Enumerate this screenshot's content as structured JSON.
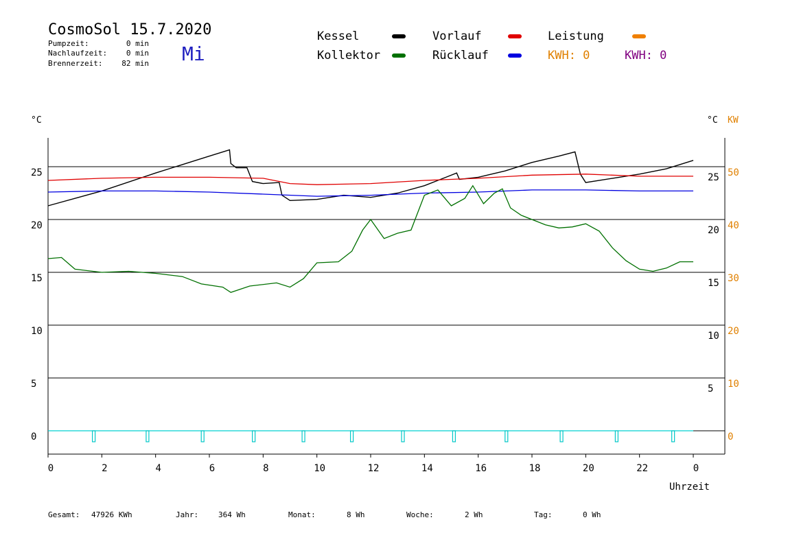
{
  "header": {
    "title": "CosmoSol 15.7.2020",
    "weekday": "Mi",
    "stats": [
      {
        "label": "Pumpzeit:",
        "value": "0 min"
      },
      {
        "label": "Nachlaufzeit:",
        "value": "0 min"
      },
      {
        "label": "Brennerzeit:",
        "value": "82 min"
      }
    ]
  },
  "legend": {
    "items": [
      {
        "label": "Kessel",
        "color": "#000000"
      },
      {
        "label": "Vorlauf",
        "color": "#e00000"
      },
      {
        "label": "Leistung",
        "color": "#f08000"
      },
      {
        "label": "Kollektor",
        "color": "#007000"
      },
      {
        "label": "Rücklauf",
        "color": "#0000e0"
      }
    ],
    "kwh_orange": {
      "text": "KWH: 0",
      "color": "#e08000"
    },
    "kwh_purple": {
      "text": "KWH: 0",
      "color": "#800080"
    }
  },
  "footer": [
    {
      "label": "Gesamt:",
      "value": "47926 KWh"
    },
    {
      "label": "Jahr:",
      "value": "364 Wh"
    },
    {
      "label": "Monat:",
      "value": "8 Wh"
    },
    {
      "label": "Woche:",
      "value": "2 Wh"
    },
    {
      "label": "Tag:",
      "value": "0 Wh"
    }
  ],
  "chart_data": {
    "type": "line",
    "xlabel": "Uhrzeit",
    "ylabel_left": "°C",
    "ylabel_right": "°C",
    "ylabel_power": "KW",
    "xlim": [
      0,
      24
    ],
    "ylim": [
      -2,
      27.5
    ],
    "x_ticks": [
      "0",
      "2",
      "4",
      "6",
      "8",
      "10",
      "12",
      "14",
      "16",
      "18",
      "20",
      "22",
      "0"
    ],
    "y_ticks_left": [
      0,
      5,
      10,
      15,
      20,
      25
    ],
    "y_ticks_right": [
      5,
      10,
      15,
      20,
      25
    ],
    "y_ticks_power": [
      0,
      10,
      20,
      30,
      40,
      50
    ],
    "grid": true,
    "series": [
      {
        "name": "Kessel",
        "color": "#000000",
        "points": [
          [
            0,
            21.3
          ],
          [
            2,
            22.7
          ],
          [
            4,
            24.4
          ],
          [
            6,
            26.0
          ],
          [
            6.75,
            26.6
          ],
          [
            6.8,
            25.3
          ],
          [
            7.0,
            24.9
          ],
          [
            7.4,
            24.9
          ],
          [
            7.6,
            23.6
          ],
          [
            8.0,
            23.4
          ],
          [
            8.6,
            23.5
          ],
          [
            8.7,
            22.3
          ],
          [
            9.0,
            21.8
          ],
          [
            10,
            21.9
          ],
          [
            11,
            22.3
          ],
          [
            12,
            22.1
          ],
          [
            13,
            22.5
          ],
          [
            14,
            23.2
          ],
          [
            14.8,
            24.0
          ],
          [
            15.2,
            24.4
          ],
          [
            15.3,
            23.8
          ],
          [
            16,
            24.0
          ],
          [
            17,
            24.6
          ],
          [
            18,
            25.4
          ],
          [
            19,
            26.0
          ],
          [
            19.6,
            26.4
          ],
          [
            19.8,
            24.3
          ],
          [
            20.0,
            23.5
          ],
          [
            21,
            23.9
          ],
          [
            22,
            24.3
          ],
          [
            23,
            24.8
          ],
          [
            24,
            25.6
          ]
        ]
      },
      {
        "name": "Vorlauf",
        "color": "#e00000",
        "points": [
          [
            0,
            23.7
          ],
          [
            2,
            23.9
          ],
          [
            4,
            24.0
          ],
          [
            6,
            24.0
          ],
          [
            8,
            23.9
          ],
          [
            9,
            23.4
          ],
          [
            10,
            23.3
          ],
          [
            12,
            23.4
          ],
          [
            14,
            23.7
          ],
          [
            16,
            23.9
          ],
          [
            18,
            24.2
          ],
          [
            20,
            24.3
          ],
          [
            22,
            24.1
          ],
          [
            24,
            24.1
          ]
        ]
      },
      {
        "name": "Rücklauf",
        "color": "#0000e0",
        "points": [
          [
            0,
            22.6
          ],
          [
            2,
            22.7
          ],
          [
            4,
            22.7
          ],
          [
            6,
            22.6
          ],
          [
            8,
            22.4
          ],
          [
            10,
            22.2
          ],
          [
            12,
            22.3
          ],
          [
            14,
            22.5
          ],
          [
            16,
            22.6
          ],
          [
            18,
            22.8
          ],
          [
            20,
            22.8
          ],
          [
            22,
            22.7
          ],
          [
            24,
            22.7
          ]
        ]
      },
      {
        "name": "Kollektor",
        "color": "#007000",
        "points": [
          [
            0,
            16.3
          ],
          [
            0.5,
            16.4
          ],
          [
            1,
            15.3
          ],
          [
            2,
            15.0
          ],
          [
            3,
            15.1
          ],
          [
            4,
            14.9
          ],
          [
            5,
            14.6
          ],
          [
            5.7,
            13.9
          ],
          [
            6.5,
            13.6
          ],
          [
            6.8,
            13.1
          ],
          [
            7.5,
            13.7
          ],
          [
            8.5,
            14.0
          ],
          [
            9.0,
            13.6
          ],
          [
            9.5,
            14.4
          ],
          [
            10,
            15.9
          ],
          [
            10.8,
            16.0
          ],
          [
            11.3,
            17.0
          ],
          [
            11.7,
            19.0
          ],
          [
            12,
            20.0
          ],
          [
            12.5,
            18.2
          ],
          [
            13,
            18.7
          ],
          [
            13.5,
            19.0
          ],
          [
            14,
            22.3
          ],
          [
            14.5,
            22.8
          ],
          [
            15,
            21.3
          ],
          [
            15.5,
            22.0
          ],
          [
            15.8,
            23.2
          ],
          [
            16.2,
            21.5
          ],
          [
            16.6,
            22.5
          ],
          [
            16.9,
            22.9
          ],
          [
            17.2,
            21.1
          ],
          [
            17.6,
            20.4
          ],
          [
            18,
            20.0
          ],
          [
            18.5,
            19.5
          ],
          [
            19,
            19.2
          ],
          [
            19.5,
            19.3
          ],
          [
            20,
            19.6
          ],
          [
            20.5,
            18.9
          ],
          [
            21,
            17.3
          ],
          [
            21.5,
            16.1
          ],
          [
            22,
            15.3
          ],
          [
            22.5,
            15.1
          ],
          [
            23,
            15.4
          ],
          [
            23.5,
            16.0
          ],
          [
            24,
            16.0
          ]
        ]
      }
    ],
    "pump_markers_h": [
      1.7,
      3.7,
      5.75,
      7.65,
      9.5,
      11.3,
      13.2,
      15.1,
      17.05,
      19.1,
      21.15,
      23.25
    ]
  }
}
